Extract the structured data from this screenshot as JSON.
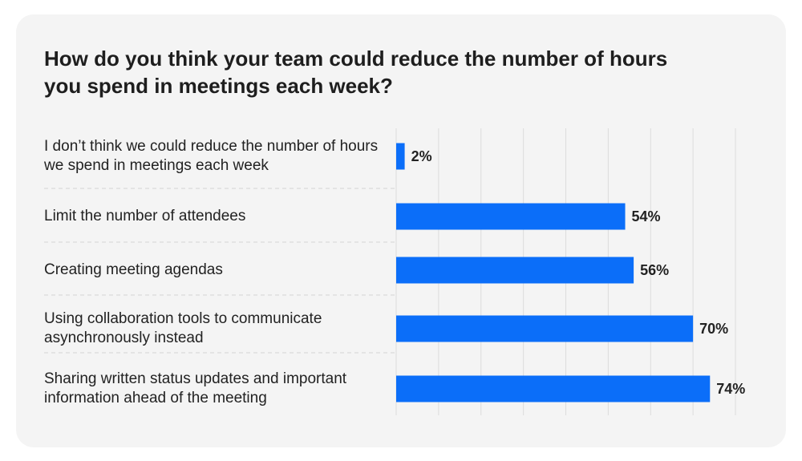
{
  "chart_data": {
    "type": "bar",
    "orientation": "horizontal",
    "title": "How do you think your team could reduce the number of hours you spend in meetings each week?",
    "categories": [
      "I don’t think we could reduce the number of hours we spend in meetings each week",
      "Limit the number of attendees",
      "Creating meeting agendas",
      "Using collaboration tools to communicate asynchronously instead",
      "Sharing written status updates and important information ahead of the meeting"
    ],
    "values": [
      2,
      54,
      56,
      70,
      74
    ],
    "value_labels": [
      "2%",
      "54%",
      "56%",
      "70%",
      "74%"
    ],
    "color": "#0b6ef9",
    "xlim": [
      0,
      80
    ],
    "xticks": [
      0,
      10,
      20,
      30,
      40,
      50,
      60,
      70,
      80
    ],
    "grid": true
  }
}
